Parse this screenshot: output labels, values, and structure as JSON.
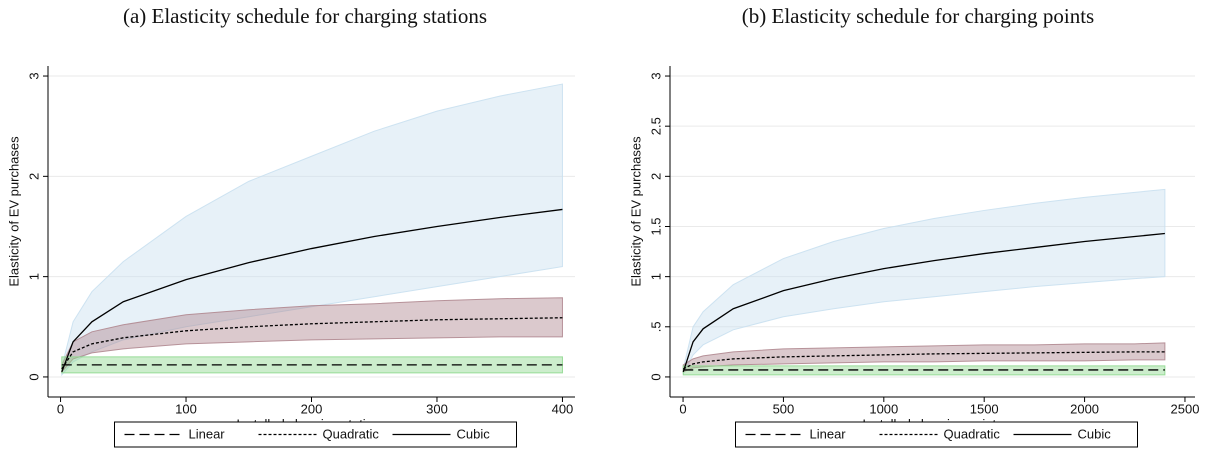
{
  "chart_data": [
    {
      "type": "line",
      "title": "(a) Elasticity schedule for charging stations",
      "xlabel": "Installed charging stations",
      "ylabel": "Elasticity of EV purchases",
      "x": [
        1,
        10,
        25,
        50,
        100,
        150,
        200,
        250,
        300,
        350,
        400
      ],
      "xlim": [
        -10,
        410
      ],
      "xticks": [
        0,
        100,
        200,
        300,
        400
      ],
      "ylim": [
        -0.2,
        3.1
      ],
      "yticks": [
        0,
        1,
        2,
        3
      ],
      "grid": true,
      "series": [
        {
          "name": "Linear",
          "color": "#000000",
          "line_style": "long-dash",
          "band_color": "#8fd88f",
          "values": [
            0.12,
            0.12,
            0.12,
            0.12,
            0.12,
            0.12,
            0.12,
            0.12,
            0.12,
            0.12,
            0.12
          ],
          "lower": [
            0.04,
            0.04,
            0.04,
            0.04,
            0.04,
            0.04,
            0.04,
            0.04,
            0.04,
            0.04,
            0.04
          ],
          "upper": [
            0.2,
            0.2,
            0.2,
            0.2,
            0.2,
            0.2,
            0.2,
            0.2,
            0.2,
            0.2,
            0.2
          ]
        },
        {
          "name": "Quadratic",
          "color": "#000000",
          "line_style": "dotted",
          "band_color": "#b08890",
          "values": [
            0.08,
            0.25,
            0.33,
            0.39,
            0.46,
            0.5,
            0.53,
            0.55,
            0.57,
            0.58,
            0.59
          ],
          "lower": [
            0.05,
            0.18,
            0.24,
            0.28,
            0.33,
            0.35,
            0.37,
            0.38,
            0.39,
            0.4,
            0.4
          ],
          "upper": [
            0.12,
            0.35,
            0.45,
            0.52,
            0.62,
            0.67,
            0.71,
            0.73,
            0.76,
            0.78,
            0.79
          ]
        },
        {
          "name": "Cubic",
          "color": "#000000",
          "line_style": "solid",
          "band_color": "#c9e0f0",
          "values": [
            0.05,
            0.35,
            0.55,
            0.75,
            0.97,
            1.14,
            1.28,
            1.4,
            1.5,
            1.59,
            1.67
          ],
          "lower": [
            0.02,
            0.15,
            0.25,
            0.37,
            0.5,
            0.6,
            0.7,
            0.8,
            0.9,
            1.0,
            1.1
          ],
          "upper": [
            0.1,
            0.55,
            0.85,
            1.15,
            1.6,
            1.95,
            2.2,
            2.45,
            2.65,
            2.8,
            2.92
          ]
        }
      ]
    },
    {
      "type": "line",
      "title": "(b) Elasticity schedule for charging points",
      "xlabel": "Installed charging points",
      "ylabel": "Elasticity of EV purchases",
      "x": [
        1,
        50,
        100,
        250,
        500,
        750,
        1000,
        1250,
        1500,
        1750,
        2000,
        2250,
        2400
      ],
      "xlim": [
        -65,
        2550
      ],
      "xticks": [
        0,
        500,
        1000,
        1500,
        2000,
        2500
      ],
      "ylim": [
        -0.2,
        3.1
      ],
      "yticks": [
        0,
        {
          "value": 0.5,
          "label": ".5"
        },
        1,
        1.5,
        2,
        2.5,
        3
      ],
      "grid": true,
      "series": [
        {
          "name": "Linear",
          "color": "#000000",
          "line_style": "long-dash",
          "band_color": "#8fd88f",
          "values": [
            0.07,
            0.07,
            0.07,
            0.07,
            0.07,
            0.07,
            0.07,
            0.07,
            0.07,
            0.07,
            0.07,
            0.07,
            0.07
          ],
          "lower": [
            0.02,
            0.02,
            0.02,
            0.02,
            0.02,
            0.02,
            0.02,
            0.02,
            0.02,
            0.02,
            0.02,
            0.02,
            0.02
          ],
          "upper": [
            0.11,
            0.11,
            0.11,
            0.11,
            0.11,
            0.11,
            0.11,
            0.11,
            0.11,
            0.11,
            0.11,
            0.11,
            0.11
          ]
        },
        {
          "name": "Quadratic",
          "color": "#000000",
          "line_style": "dotted",
          "band_color": "#b08890",
          "values": [
            0.08,
            0.13,
            0.15,
            0.18,
            0.2,
            0.21,
            0.22,
            0.23,
            0.235,
            0.24,
            0.245,
            0.25,
            0.25
          ],
          "lower": [
            0.05,
            0.09,
            0.1,
            0.12,
            0.13,
            0.14,
            0.15,
            0.15,
            0.16,
            0.16,
            0.16,
            0.17,
            0.17
          ],
          "upper": [
            0.12,
            0.18,
            0.21,
            0.25,
            0.28,
            0.29,
            0.3,
            0.31,
            0.32,
            0.32,
            0.33,
            0.33,
            0.34
          ]
        },
        {
          "name": "Cubic",
          "color": "#000000",
          "line_style": "solid",
          "band_color": "#c9e0f0",
          "values": [
            0.05,
            0.35,
            0.48,
            0.68,
            0.86,
            0.98,
            1.08,
            1.16,
            1.23,
            1.29,
            1.35,
            1.4,
            1.43
          ],
          "lower": [
            0.03,
            0.22,
            0.32,
            0.47,
            0.6,
            0.68,
            0.75,
            0.8,
            0.85,
            0.9,
            0.94,
            0.98,
            1.0
          ],
          "upper": [
            0.08,
            0.5,
            0.65,
            0.92,
            1.18,
            1.35,
            1.48,
            1.58,
            1.66,
            1.73,
            1.79,
            1.84,
            1.87
          ]
        }
      ]
    }
  ]
}
